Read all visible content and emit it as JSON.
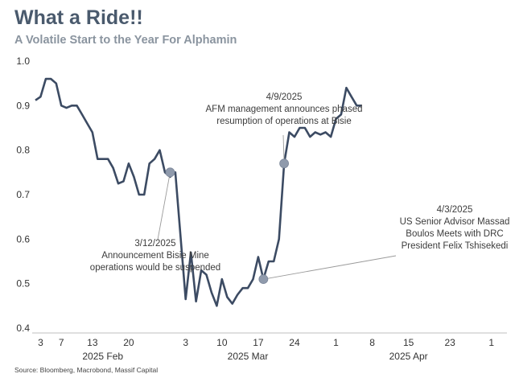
{
  "title": "What a Ride!!",
  "subtitle": "A Volatile Start to the Year For Alphamin",
  "source": "Source: Bloomberg, Macrobond, Massif Capital",
  "chart_data": {
    "type": "line",
    "ylim": [
      0.4,
      1.0
    ],
    "yticks": [
      "0.4",
      "0.5",
      "0.6",
      "0.7",
      "0.8",
      "0.9",
      "1.0"
    ],
    "ytick_values": [
      0.4,
      0.5,
      0.6,
      0.7,
      0.8,
      0.9,
      1.0
    ],
    "xlim": [
      "2025-02-02",
      "2025-05-04"
    ],
    "xticks": [
      {
        "date": "2025-02-03",
        "label": "3"
      },
      {
        "date": "2025-02-07",
        "label": "7"
      },
      {
        "date": "2025-02-13",
        "label": "13"
      },
      {
        "date": "2025-02-20",
        "label": "20"
      },
      {
        "date": "2025-03-03",
        "label": "3"
      },
      {
        "date": "2025-03-10",
        "label": "10"
      },
      {
        "date": "2025-03-17",
        "label": "17"
      },
      {
        "date": "2025-03-24",
        "label": "24"
      },
      {
        "date": "2025-04-01",
        "label": "1"
      },
      {
        "date": "2025-04-08",
        "label": "8"
      },
      {
        "date": "2025-04-15",
        "label": "15"
      },
      {
        "date": "2025-04-23",
        "label": "23"
      },
      {
        "date": "2025-05-01",
        "label": "1"
      }
    ],
    "month_labels": [
      {
        "date": "2025-02-15",
        "label": "2025 Feb"
      },
      {
        "date": "2025-03-15",
        "label": "2025 Mar"
      },
      {
        "date": "2025-04-15",
        "label": "2025 Apr"
      }
    ],
    "grid": false,
    "line_color": "#3c4b63",
    "marker_color": "#8f9aac",
    "series": [
      {
        "points": [
          [
            "2025-02-02",
            0.912
          ],
          [
            "2025-02-03",
            0.92
          ],
          [
            "2025-02-04",
            0.96
          ],
          [
            "2025-02-05",
            0.96
          ],
          [
            "2025-02-06",
            0.95
          ],
          [
            "2025-02-07",
            0.9
          ],
          [
            "2025-02-08",
            0.895
          ],
          [
            "2025-02-09",
            0.9
          ],
          [
            "2025-02-10",
            0.9
          ],
          [
            "2025-02-11",
            0.88
          ],
          [
            "2025-02-12",
            0.86
          ],
          [
            "2025-02-13",
            0.84
          ],
          [
            "2025-02-14",
            0.78
          ],
          [
            "2025-02-15",
            0.78
          ],
          [
            "2025-02-16",
            0.78
          ],
          [
            "2025-02-17",
            0.76
          ],
          [
            "2025-02-18",
            0.725
          ],
          [
            "2025-02-19",
            0.73
          ],
          [
            "2025-02-20",
            0.77
          ],
          [
            "2025-02-21",
            0.74
          ],
          [
            "2025-02-22",
            0.7
          ],
          [
            "2025-02-23",
            0.7
          ],
          [
            "2025-02-24",
            0.77
          ],
          [
            "2025-02-25",
            0.78
          ],
          [
            "2025-02-26",
            0.8
          ],
          [
            "2025-02-27",
            0.75
          ],
          [
            "2025-02-28",
            0.74
          ],
          [
            "2025-03-01",
            0.75
          ],
          [
            "2025-03-03",
            0.465
          ],
          [
            "2025-03-04",
            0.57
          ],
          [
            "2025-03-05",
            0.46
          ],
          [
            "2025-03-06",
            0.53
          ],
          [
            "2025-03-07",
            0.52
          ],
          [
            "2025-03-08",
            0.48
          ],
          [
            "2025-03-09",
            0.45
          ],
          [
            "2025-03-10",
            0.51
          ],
          [
            "2025-03-11",
            0.47
          ],
          [
            "2025-03-12",
            0.455
          ],
          [
            "2025-03-13",
            0.475
          ],
          [
            "2025-03-14",
            0.49
          ],
          [
            "2025-03-15",
            0.49
          ],
          [
            "2025-03-16",
            0.51
          ],
          [
            "2025-03-17",
            0.56
          ],
          [
            "2025-03-18",
            0.51
          ],
          [
            "2025-03-19",
            0.55
          ],
          [
            "2025-03-20",
            0.55
          ],
          [
            "2025-03-21",
            0.6
          ],
          [
            "2025-03-22",
            0.77
          ],
          [
            "2025-03-23",
            0.84
          ],
          [
            "2025-03-24",
            0.83
          ],
          [
            "2025-03-25",
            0.85
          ],
          [
            "2025-03-26",
            0.85
          ],
          [
            "2025-03-27",
            0.83
          ],
          [
            "2025-03-28",
            0.84
          ],
          [
            "2025-03-29",
            0.835
          ],
          [
            "2025-03-30",
            0.84
          ],
          [
            "2025-03-31",
            0.83
          ],
          [
            "2025-04-01",
            0.87
          ],
          [
            "2025-04-02",
            0.88
          ],
          [
            "2025-04-03",
            0.94
          ],
          [
            "2025-04-04",
            0.92
          ],
          [
            "2025-04-05",
            0.9
          ],
          [
            "2025-04-06",
            0.9
          ]
        ]
      }
    ],
    "annotations": [
      {
        "point": [
          "2025-02-28",
          0.75
        ],
        "lines": [
          "3/12/2025",
          "Announcement Bisie Mine",
          "operations would be suspended"
        ]
      },
      {
        "point": [
          "2025-03-22",
          0.77
        ],
        "lines": [
          "4/9/2025",
          "AFM management announces phased",
          "resumption of operations at Bisie"
        ]
      },
      {
        "point": [
          "2025-03-18",
          0.51
        ],
        "lines": [
          "4/3/2025",
          "US Senior Advisor Massad",
          "Boulos Meets with DRC",
          "President Felix Tshisekedi"
        ]
      }
    ]
  }
}
